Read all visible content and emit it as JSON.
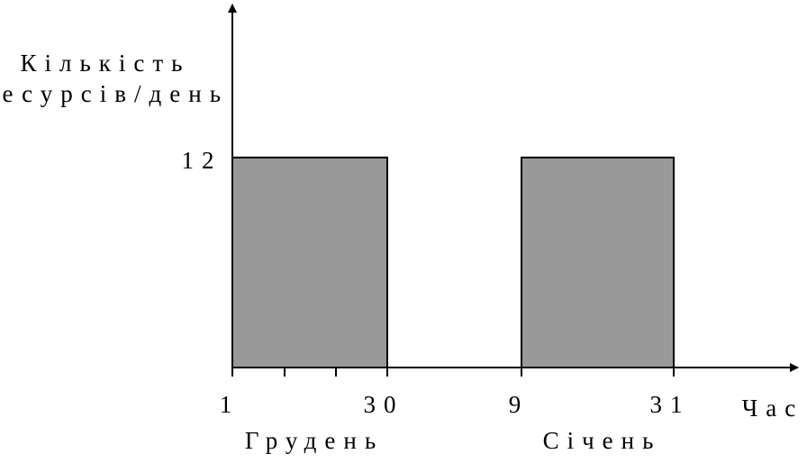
{
  "chart_data": {
    "type": "bar",
    "ylabel": [
      "Кількість",
      "ресурсів/день"
    ],
    "xlabel": "Час",
    "ylim": [
      0,
      21
    ],
    "yticks": [
      12
    ],
    "color": "#999999",
    "bars": [
      {
        "start": 1,
        "end": 30,
        "value": 12,
        "month": "Грудень"
      },
      {
        "start": 9,
        "end": 31,
        "value": 12,
        "month": "Січень"
      }
    ]
  }
}
